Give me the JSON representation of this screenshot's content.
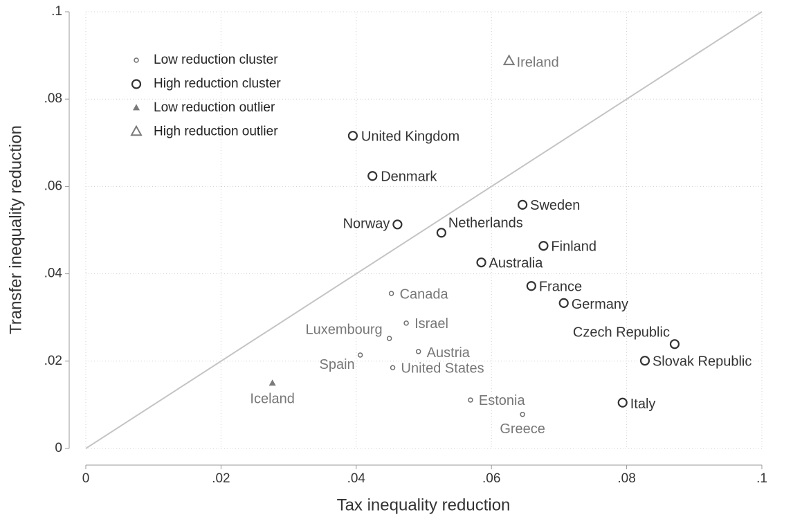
{
  "chart_data": {
    "type": "scatter",
    "x_label": "Tax inequality reduction",
    "y_label": "Transfer inequality reduction",
    "xlim": [
      0,
      0.1
    ],
    "ylim": [
      0,
      0.1
    ],
    "xticks": [
      0,
      {
        "value": 0.02,
        "label": ".02"
      },
      {
        "value": 0.04,
        "label": ".04"
      },
      {
        "value": 0.06,
        "label": ".06"
      },
      {
        "value": 0.08,
        "label": ".08"
      },
      {
        "value": 0.1,
        "label": ".1"
      }
    ],
    "yticks": [
      0,
      {
        "value": 0.02,
        "label": ".02"
      },
      {
        "value": 0.04,
        "label": ".04"
      },
      {
        "value": 0.06,
        "label": ".06"
      },
      {
        "value": 0.08,
        "label": ".08"
      },
      {
        "value": 0.1,
        "label": ".1"
      }
    ],
    "grid": true,
    "legend": "upper left",
    "series": [
      {
        "name": "Low reduction cluster",
        "color": "#6e6e6e",
        "marker": "circle",
        "labels": [
          "Canada",
          "Israel",
          "Luxembourg",
          "Austria",
          "Spain",
          "United States",
          "Estonia",
          "Greece"
        ],
        "x": [
          0.0452,
          0.0474,
          0.0449,
          0.0492,
          0.0406,
          0.0454,
          0.0569,
          0.0646
        ],
        "y": [
          0.0355,
          0.0287,
          0.0252,
          0.0222,
          0.0214,
          0.0185,
          0.0111,
          0.0078
        ]
      },
      {
        "name": "High reduction cluster",
        "color": "#333333",
        "marker": "circle",
        "labels": [
          "United Kingdom",
          "Denmark",
          "Norway",
          "Netherlands",
          "Sweden",
          "Finland",
          "Australia",
          "France",
          "Germany",
          "Czech Republic",
          "Slovak Republic",
          "Italy"
        ],
        "x": [
          0.0395,
          0.0424,
          0.0461,
          0.0526,
          0.0646,
          0.0677,
          0.0585,
          0.0659,
          0.0707,
          0.0871,
          0.0827,
          0.0794
        ],
        "y": [
          0.0716,
          0.0624,
          0.0513,
          0.0494,
          0.0558,
          0.0464,
          0.0426,
          0.0372,
          0.0333,
          0.0239,
          0.0201,
          0.0105
        ]
      },
      {
        "name": "Low reduction outlier",
        "color": "#7a7a7a",
        "marker": "triangle",
        "labels": [
          "Iceland"
        ],
        "x": [
          0.0276
        ],
        "y": [
          0.0149
        ]
      },
      {
        "name": "High reduction outlier",
        "color": "#7a7a7a",
        "marker": "triangle",
        "labels": [
          "Ireland"
        ],
        "x": [
          0.0626
        ],
        "y": [
          0.0887
        ]
      }
    ]
  }
}
